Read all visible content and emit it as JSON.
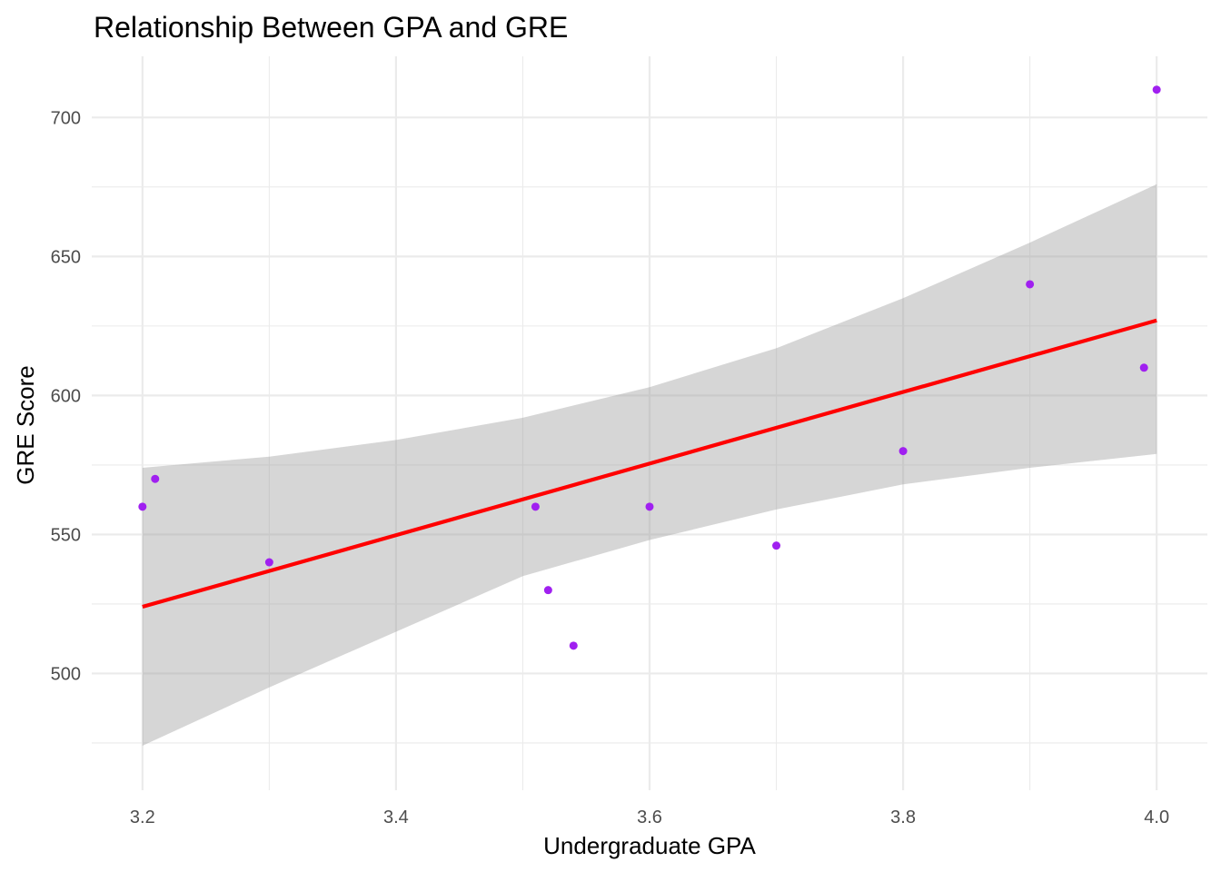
{
  "chart_data": {
    "type": "scatter",
    "title": "Relationship Between GPA and GRE",
    "xlabel": "Undergraduate GPA",
    "ylabel": "GRE Score",
    "xlim": [
      3.16,
      4.04
    ],
    "ylim": [
      458,
      722
    ],
    "x_ticks": [
      3.2,
      3.4,
      3.6,
      3.8,
      4.0
    ],
    "x_tick_labels": [
      "3.2",
      "3.4",
      "3.6",
      "3.8",
      "4.0"
    ],
    "y_ticks": [
      500,
      550,
      600,
      650,
      700
    ],
    "y_tick_labels": [
      "500",
      "550",
      "600",
      "650",
      "700"
    ],
    "grid": true,
    "points": [
      {
        "x": 3.2,
        "y": 560
      },
      {
        "x": 3.21,
        "y": 570
      },
      {
        "x": 3.3,
        "y": 540
      },
      {
        "x": 3.51,
        "y": 560
      },
      {
        "x": 3.52,
        "y": 530
      },
      {
        "x": 3.54,
        "y": 510
      },
      {
        "x": 3.6,
        "y": 560
      },
      {
        "x": 3.7,
        "y": 546
      },
      {
        "x": 3.8,
        "y": 580
      },
      {
        "x": 3.9,
        "y": 640
      },
      {
        "x": 3.99,
        "y": 610
      },
      {
        "x": 4.0,
        "y": 710
      }
    ],
    "trend_line": {
      "x": [
        3.2,
        4.0
      ],
      "y": [
        524,
        627
      ]
    },
    "confidence_band": {
      "x": [
        3.2,
        3.3,
        3.4,
        3.5,
        3.6,
        3.7,
        3.8,
        3.9,
        4.0
      ],
      "upper": [
        574,
        578,
        584,
        592,
        603,
        617,
        635,
        655,
        676
      ],
      "lower": [
        474,
        495,
        515,
        535,
        548,
        559,
        568,
        574,
        579
      ]
    },
    "colors": {
      "point": "#a020f0",
      "trend_line": "#ff0000",
      "band": "#999999",
      "grid": "#ebebeb",
      "tick_text": "#4d4d4d"
    }
  }
}
